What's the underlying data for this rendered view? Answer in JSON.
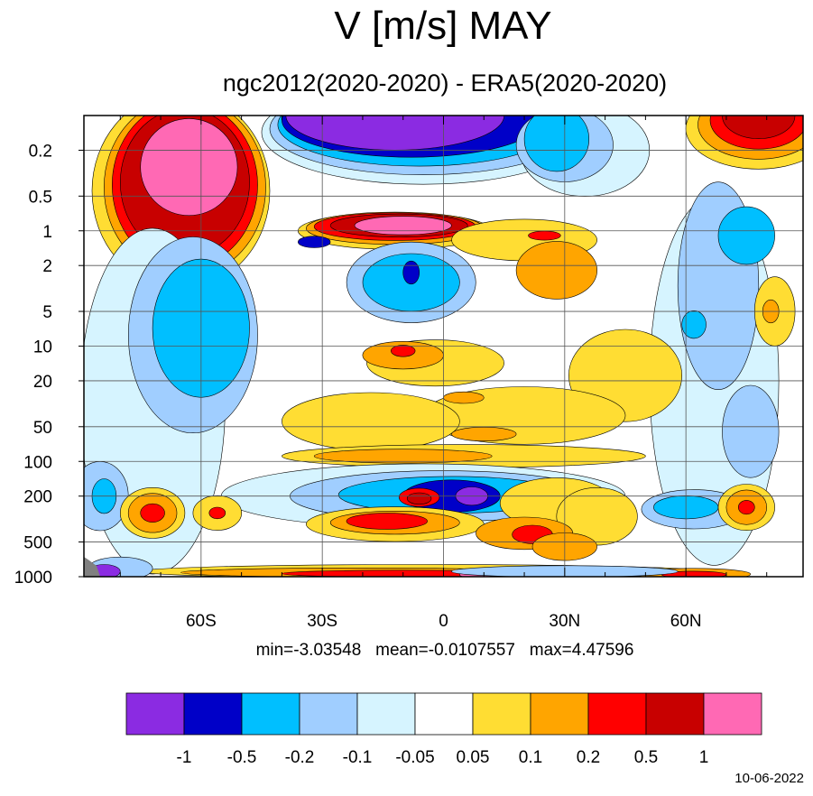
{
  "chart_data": {
    "type": "heatmap",
    "title": "V [m/s] MAY",
    "subtitle": "ngc2012(2020-2020) - ERA5(2020-2020)",
    "x_tick_labels": [
      "60S",
      "30S",
      "0",
      "30N",
      "60N"
    ],
    "x_ticks_deg": [
      -60,
      -30,
      0,
      30,
      60
    ],
    "xlim": [
      -89,
      89
    ],
    "y_tick_labels": [
      "0.2",
      "0.5",
      "1",
      "2",
      "5",
      "10",
      "20",
      "50",
      "100",
      "200",
      "500",
      "1000"
    ],
    "y_ticks": [
      0.2,
      0.5,
      1,
      2,
      5,
      10,
      20,
      50,
      100,
      200,
      500,
      1000
    ],
    "ylim": [
      0.1,
      1000
    ],
    "y_scale": "log",
    "grid": true,
    "colorbar_labels": [
      "-1",
      "-0.5",
      "-0.2",
      "-0.1",
      "-0.05",
      "0.05",
      "0.1",
      "0.2",
      "0.5",
      "1"
    ],
    "colorbar_levels": [
      -1,
      -0.5,
      -0.2,
      -0.1,
      -0.05,
      0.05,
      0.1,
      0.2,
      0.5,
      1
    ],
    "colorbar_colors": [
      "#8b2be2",
      "#0000c8",
      "#00bfff",
      "#a0ceff",
      "#d6f4ff",
      "#ffffff",
      "#ffdd33",
      "#ffa500",
      "#ff0000",
      "#c80000",
      "#ff69b4"
    ],
    "colorbar_position": "bottom",
    "min": "-3.03548",
    "mean": "-0.0107557",
    "max": "4.47596",
    "date": "10-06-2022"
  }
}
